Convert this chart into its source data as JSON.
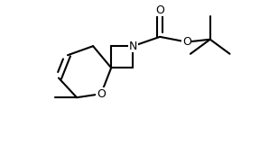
{
  "background": "#ffffff",
  "line_color": "#000000",
  "line_width": 1.5,
  "font_size": 9,
  "xlim": [
    -2.0,
    2.9
  ],
  "ylim": [
    -1.5,
    1.3
  ]
}
